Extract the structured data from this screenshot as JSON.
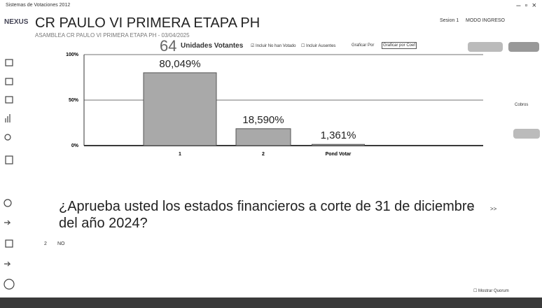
{
  "window_title": "Sistemas de Votaciones 2012",
  "logo": "NEXUS",
  "header": {
    "title": "CR PAULO VI PRIMERA ETAPA PH",
    "subtitle": "ASAMBLEA CR PAULO VI PRIMERA ETAPA PH - 03/04/2025",
    "session": "Sesion 1",
    "mode": "MODO INGRESO"
  },
  "toolbar": {
    "count": "64",
    "count_label": "Unidades Votantes",
    "options": [
      "Incluir No han Votado",
      "Incluir Ausentes",
      "Graficar Por",
      "Graficar por Coef"
    ]
  },
  "side_label": "Cobros",
  "question": "¿Aprueba usted los estados financieros a corte de 31 de diciembre del año 2024?",
  "answer": {
    "number": "2",
    "text": "NO"
  },
  "nav": [
    "<<",
    ">>"
  ],
  "quorum": "Mostrar Quorum",
  "chart_data": {
    "type": "bar",
    "categories": [
      "1",
      "2",
      "Pond Votar"
    ],
    "values": [
      80.049,
      18.59,
      1.361
    ],
    "value_labels": [
      "80,049%",
      "18,590%",
      "1,361%"
    ],
    "color": "#a9a9a9",
    "ylim": [
      0,
      100
    ],
    "yticks": [
      {
        "value": 0,
        "label": "0%"
      },
      {
        "value": 50,
        "label": "50%"
      },
      {
        "value": 100,
        "label": "100%"
      }
    ],
    "grid": true
  }
}
